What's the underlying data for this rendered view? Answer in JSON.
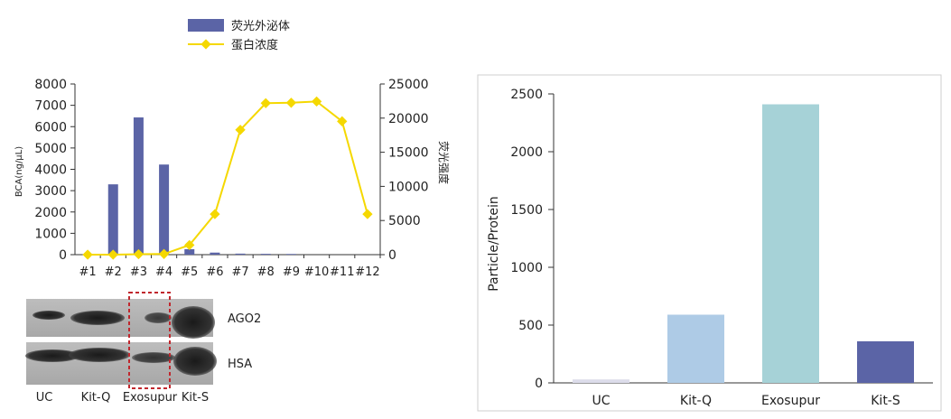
{
  "chart_data": [
    {
      "type": "bar+line",
      "categories": [
        "#1",
        "#2",
        "#3",
        "#4",
        "#5",
        "#6",
        "#7",
        "#8",
        "#9",
        "#10",
        "#11",
        "#12"
      ],
      "series": [
        {
          "name": "荧光外泌体",
          "kind": "bar",
          "axis": "right",
          "color": "#5b64a6",
          "values": [
            0,
            10300,
            20100,
            13200,
            800,
            300,
            150,
            120,
            100,
            0,
            0,
            0
          ]
        },
        {
          "name": "蛋白浓度",
          "kind": "line",
          "axis": "left",
          "color": "#f5d800",
          "values": [
            0,
            0,
            20,
            30,
            450,
            1900,
            5850,
            7100,
            7120,
            7180,
            6250,
            1900
          ]
        }
      ],
      "ylabel": "BCA(ng/μL)",
      "y2label": "荧光强度",
      "ylim": [
        0,
        8000
      ],
      "yticks": [
        0,
        1000,
        2000,
        3000,
        4000,
        5000,
        6000,
        7000,
        8000
      ],
      "y2lim": [
        0,
        25000
      ],
      "y2ticks": [
        0,
        5000,
        10000,
        15000,
        20000,
        25000
      ],
      "legend": "top"
    },
    {
      "type": "bar",
      "categories": [
        "UC",
        "Kit-Q",
        "Exosupur",
        "Kit-S"
      ],
      "values": [
        30,
        590,
        2410,
        360
      ],
      "colors": [
        "#dcdcea",
        "#aecbe6",
        "#a6d2d7",
        "#5b64a6"
      ],
      "ylabel": "Particle/Protein",
      "ylim": [
        0,
        2500
      ],
      "yticks": [
        0,
        500,
        1000,
        1500,
        2000,
        2500
      ]
    }
  ],
  "blot": {
    "bands": [
      "AGO2",
      "HSA"
    ],
    "lanes": [
      "UC",
      "Kit-Q",
      "Exosupur",
      "Kit-S"
    ],
    "highlight_lane": 2
  }
}
